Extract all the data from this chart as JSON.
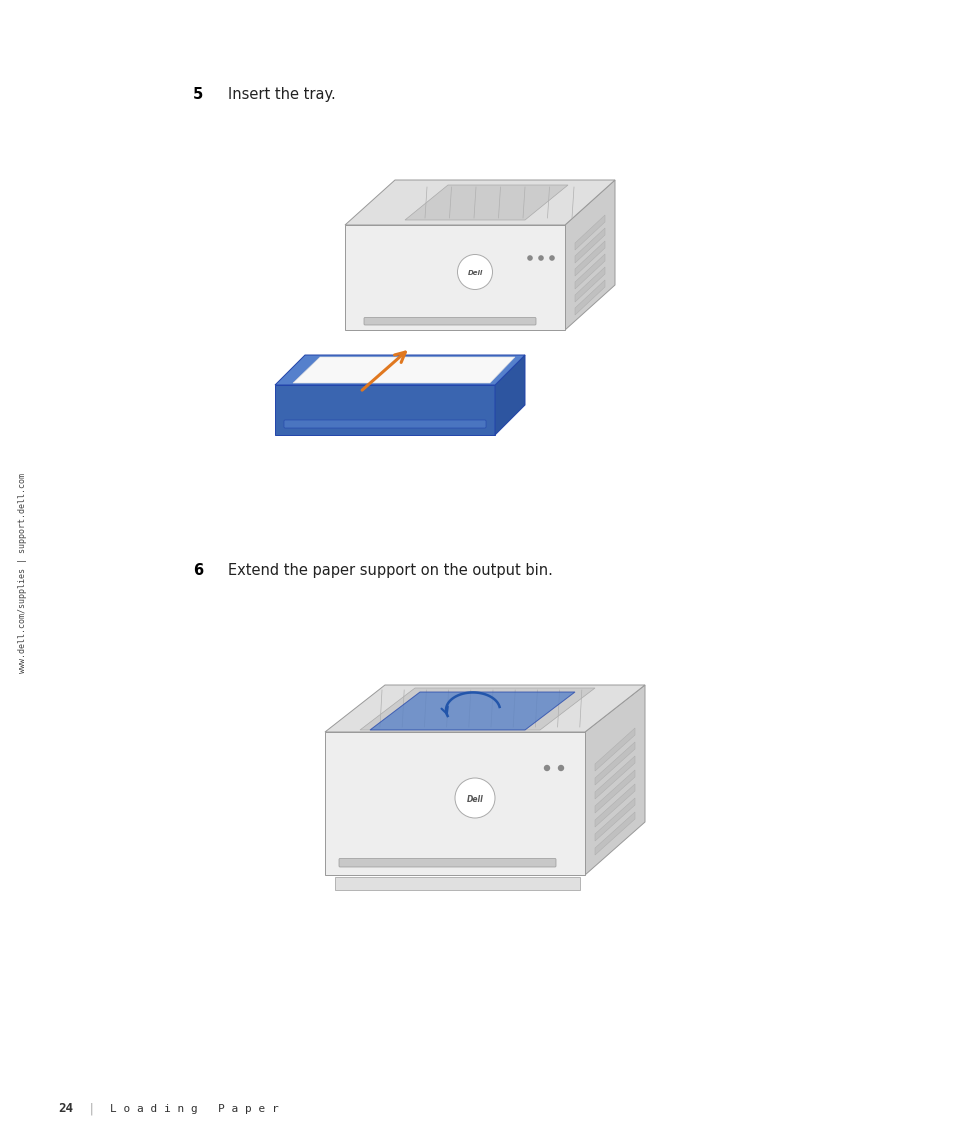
{
  "bg_color": "#ffffff",
  "page_width": 9.54,
  "page_height": 11.45,
  "step5_number": "5",
  "step5_text": "Insert the tray.",
  "step6_number": "6",
  "step6_text": "Extend the paper support on the output bin.",
  "footer_page": "24",
  "footer_sep": "|",
  "footer_text": "L o a d i n g   P a p e r",
  "sidebar_text": "www.dell.com/supplies | support.dell.com",
  "step_num_color": "#000000",
  "text_color": "#222222",
  "sidebar_color": "#444444",
  "footer_color": "#333333",
  "printer_body_light": "#eeeeee",
  "printer_body_mid": "#e0e0e0",
  "printer_body_dark": "#cccccc",
  "printer_outline": "#999999",
  "tray_color": "#3a65b0",
  "tray_light": "#5580cc",
  "paper_color": "#f8f8f8",
  "arrow_orange": "#e07820",
  "blue_flap": "#5580c8",
  "blue_arrow": "#2255aa"
}
